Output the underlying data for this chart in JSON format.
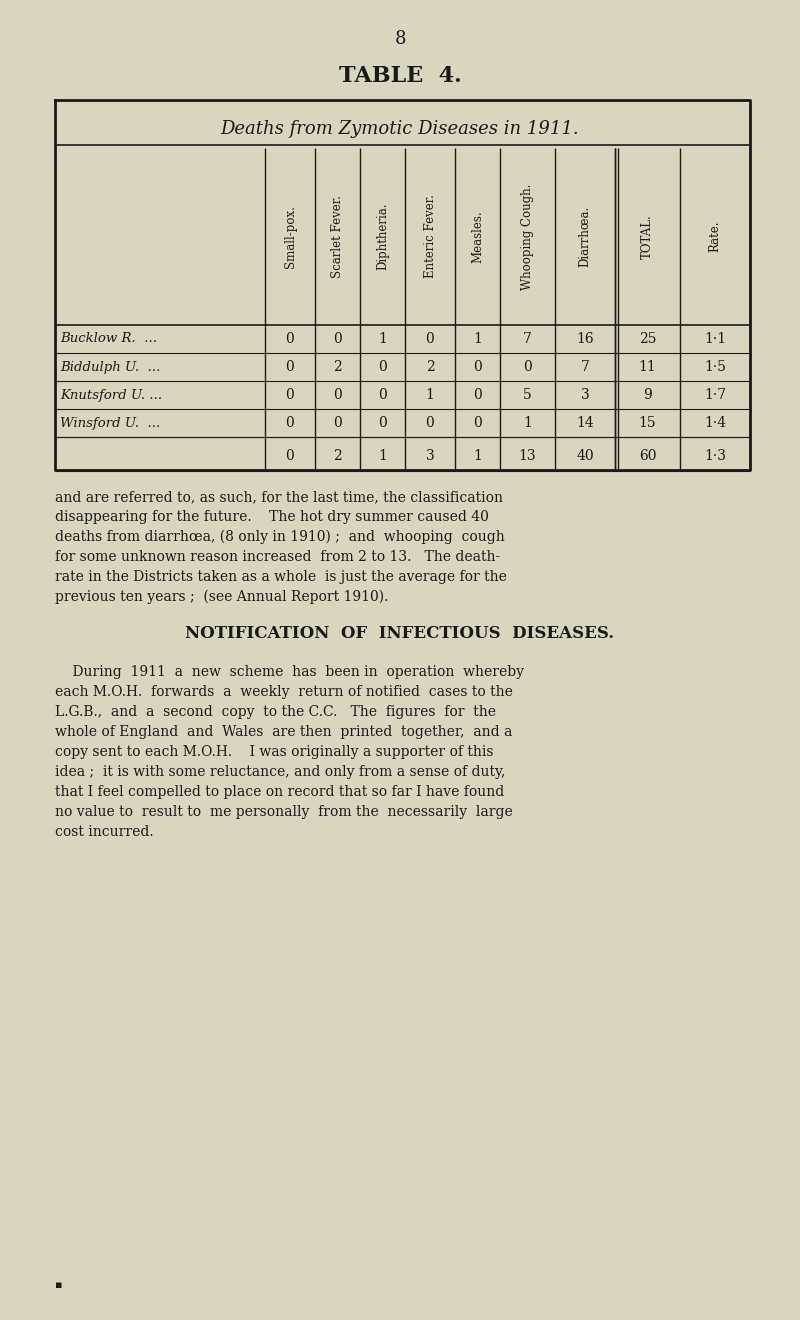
{
  "page_number": "8",
  "table_title": "TABLE  4.",
  "table_header": "Deaths from Zymotic Diseases in 1911.",
  "col_headers": [
    "Small-pox.",
    "Scarlet Fever.",
    "Diphtheria.",
    "Enteric Fever.",
    "Measles.",
    "Whooping Cough.",
    "Diarrhœa.",
    "TOTAL.",
    "Rate."
  ],
  "rows": [
    {
      "label": "Bucklow R.  ...",
      "values": [
        0,
        0,
        1,
        0,
        1,
        7,
        16,
        25,
        "1·1"
      ]
    },
    {
      "label": "Biddulph U.  ...",
      "values": [
        0,
        2,
        0,
        2,
        0,
        0,
        7,
        11,
        "1·5"
      ]
    },
    {
      "label": "Knutsford U. ...",
      "values": [
        0,
        0,
        0,
        1,
        0,
        5,
        3,
        9,
        "1·7"
      ]
    },
    {
      "label": "Winsford U.  ...",
      "values": [
        0,
        0,
        0,
        0,
        0,
        1,
        14,
        15,
        "1·4"
      ]
    }
  ],
  "totals_row": {
    "label": "",
    "values": [
      0,
      2,
      1,
      3,
      1,
      13,
      40,
      60,
      "1·3"
    ]
  },
  "para1": "and are referred to, as such, for the last time, the classification\ndisappearing for the future.    The hot dry summer caused 40\ndeaths from diarrhœa, (8 only in 1910) ;  and  whooping  cough\nfor some unknown reason increased  from 2 to 13.   The death-\nrate in the Districts taken as a whole  is just the average for the\nprevious ten years ;  (see Annual Report 1910).",
  "section_heading": "NOTIFICATION  OF  INFECTIOUS  DISEASES.",
  "para2": "    During  1911  a  new  scheme  has  been in  operation  whereby\neach M.O.H.  forwards  a  weekly  return of notified  cases to the\nL.G.B.,  and  a  second  copy  to the C.C.   The  figures  for  the\nwhole of England  and  Wales  are then  printed  together,  and a\ncopy sent to each M.O.H.    I was originally a supporter of this\nidea ;  it is with some reluctance, and only from a sense of duty,\nthat I feel compelled to place on record that so far I have found\nno value to  result to  me personally  from the  necessarily  large\ncost incurred.",
  "bg_color": "#d9d5c0",
  "text_color": "#1a1a1a",
  "table_bg": "#d9d5c0",
  "border_color": "#1a1a1a"
}
